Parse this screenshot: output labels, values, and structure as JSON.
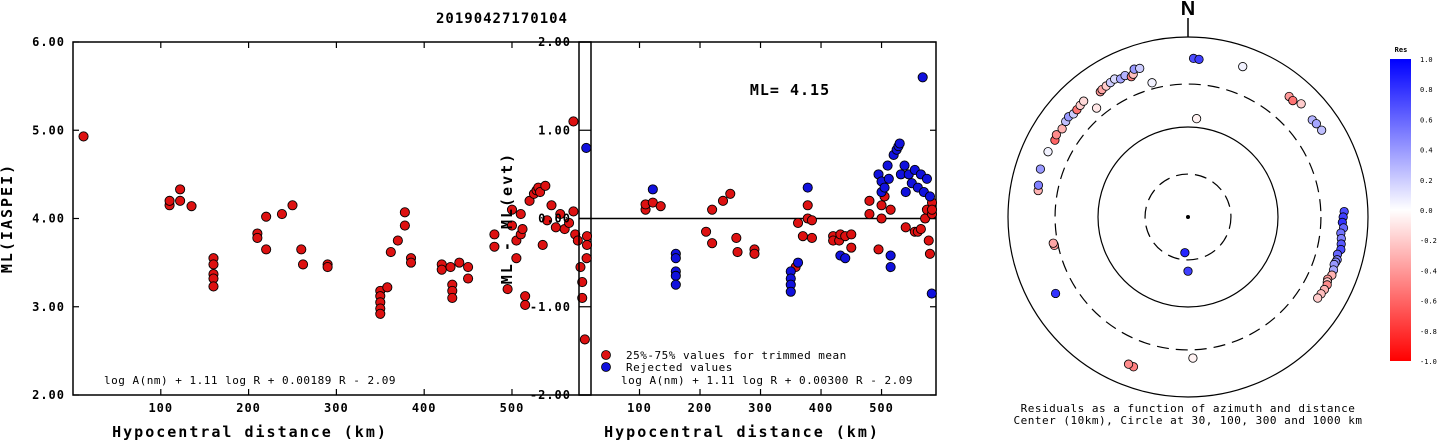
{
  "title": "20190427170104",
  "colors": {
    "red": "#dd1111",
    "blue": "#1111dd",
    "axis": "#000000"
  },
  "chart_data": [
    {
      "type": "scatter",
      "xlabel": "Hypocentral distance (km)",
      "ylabel": "ML(IASPEI)",
      "formula": "log A(nm) + 1.11 log R + 0.00189 R - 2.09",
      "xlim": [
        0,
        590
      ],
      "ylim": [
        2.0,
        6.0
      ],
      "xticks": [
        100,
        200,
        300,
        400,
        500
      ],
      "xtick_labels": [
        "100",
        "200",
        "300",
        "400",
        "500"
      ],
      "yticks": [
        2.0,
        3.0,
        4.0,
        5.0,
        6.0
      ],
      "ytick_labels": [
        "2.00",
        "3.00",
        "4.00",
        "5.00",
        "6.00"
      ],
      "grid": false,
      "points": [
        [
          12,
          4.93
        ],
        [
          110,
          4.15
        ],
        [
          110,
          4.2
        ],
        [
          122,
          4.2
        ],
        [
          122,
          4.33
        ],
        [
          135,
          4.14
        ],
        [
          160,
          3.55
        ],
        [
          160,
          3.48
        ],
        [
          160,
          3.37
        ],
        [
          160,
          3.32
        ],
        [
          160,
          3.23
        ],
        [
          210,
          3.83
        ],
        [
          210,
          3.78
        ],
        [
          220,
          4.02
        ],
        [
          220,
          3.65
        ],
        [
          238,
          4.05
        ],
        [
          250,
          4.15
        ],
        [
          260,
          3.65
        ],
        [
          262,
          3.48
        ],
        [
          290,
          3.48
        ],
        [
          290,
          3.45
        ],
        [
          350,
          3.18
        ],
        [
          350,
          3.12
        ],
        [
          350,
          3.05
        ],
        [
          350,
          2.98
        ],
        [
          350,
          2.92
        ],
        [
          358,
          3.22
        ],
        [
          362,
          3.62
        ],
        [
          370,
          3.75
        ],
        [
          378,
          4.07
        ],
        [
          378,
          3.92
        ],
        [
          385,
          3.55
        ],
        [
          385,
          3.5
        ],
        [
          420,
          3.48
        ],
        [
          420,
          3.42
        ],
        [
          430,
          3.45
        ],
        [
          432,
          3.25
        ],
        [
          432,
          3.18
        ],
        [
          432,
          3.1
        ],
        [
          440,
          3.5
        ],
        [
          450,
          3.45
        ],
        [
          450,
          3.32
        ],
        [
          480,
          3.82
        ],
        [
          480,
          3.68
        ],
        [
          495,
          3.2
        ],
        [
          500,
          4.1
        ],
        [
          500,
          3.92
        ],
        [
          505,
          3.55
        ],
        [
          505,
          3.75
        ],
        [
          510,
          3.82
        ],
        [
          510,
          4.05
        ],
        [
          512,
          3.88
        ],
        [
          515,
          3.12
        ],
        [
          515,
          3.02
        ],
        [
          520,
          4.2
        ],
        [
          525,
          4.28
        ],
        [
          528,
          4.32
        ],
        [
          530,
          4.35
        ],
        [
          532,
          4.3
        ],
        [
          535,
          3.7
        ],
        [
          538,
          4.37
        ],
        [
          540,
          3.98
        ],
        [
          545,
          4.15
        ],
        [
          550,
          3.9
        ],
        [
          555,
          4.05
        ],
        [
          560,
          3.88
        ],
        [
          565,
          3.95
        ],
        [
          570,
          4.08
        ],
        [
          570,
          5.1
        ],
        [
          572,
          3.82
        ],
        [
          575,
          3.75
        ],
        [
          578,
          3.45
        ],
        [
          580,
          3.28
        ],
        [
          580,
          3.1
        ],
        [
          583,
          2.63
        ],
        [
          585,
          3.55
        ],
        [
          588,
          3.8
        ],
        [
          590,
          3.7
        ]
      ]
    },
    {
      "type": "scatter",
      "xlabel": "Hypocentral distance (km)",
      "ylabel": "ML - ML(evt)",
      "annotation": "ML= 4.15",
      "formula": "log A(nm) + 1.11 log R + 0.00300 R - 2.09",
      "xlim": [
        0,
        590
      ],
      "ylim": [
        -2.0,
        2.0
      ],
      "xticks": [
        100,
        200,
        300,
        400,
        500
      ],
      "xtick_labels": [
        "100",
        "200",
        "300",
        "400",
        "500"
      ],
      "yticks": [
        -2.0,
        -1.0,
        0.0,
        1.0,
        2.0
      ],
      "ytick_labels": [
        "-2.00",
        "-1.00",
        "0.00",
        "1.00",
        "2.00"
      ],
      "reference_line": 0.0,
      "grid": false,
      "legend": [
        "25%-75% values for trimmed mean",
        "Rejected values"
      ],
      "series": [
        {
          "name": "25%-75% values for trimmed mean",
          "color": "#dd1111",
          "points": [
            [
              110,
              0.1
            ],
            [
              110,
              0.16
            ],
            [
              122,
              0.18
            ],
            [
              135,
              0.14
            ],
            [
              210,
              -0.15
            ],
            [
              220,
              0.1
            ],
            [
              220,
              -0.28
            ],
            [
              238,
              0.2
            ],
            [
              250,
              0.28
            ],
            [
              260,
              -0.22
            ],
            [
              262,
              -0.38
            ],
            [
              290,
              -0.35
            ],
            [
              290,
              -0.4
            ],
            [
              358,
              -0.55
            ],
            [
              362,
              -0.05
            ],
            [
              370,
              -0.2
            ],
            [
              378,
              0.15
            ],
            [
              378,
              0.0
            ],
            [
              385,
              -0.02
            ],
            [
              385,
              -0.22
            ],
            [
              420,
              -0.2
            ],
            [
              420,
              -0.25
            ],
            [
              430,
              -0.25
            ],
            [
              432,
              -0.18
            ],
            [
              440,
              -0.2
            ],
            [
              450,
              -0.33
            ],
            [
              450,
              -0.18
            ],
            [
              480,
              0.2
            ],
            [
              480,
              0.05
            ],
            [
              495,
              -0.35
            ],
            [
              500,
              0.0
            ],
            [
              500,
              0.15
            ],
            [
              505,
              0.25
            ],
            [
              515,
              0.1
            ],
            [
              540,
              -0.1
            ],
            [
              555,
              -0.15
            ],
            [
              560,
              -0.15
            ],
            [
              565,
              -0.12
            ],
            [
              572,
              0.0
            ],
            [
              575,
              0.1
            ],
            [
              578,
              -0.25
            ],
            [
              580,
              -0.4
            ],
            [
              585,
              0.05
            ],
            [
              588,
              0.18
            ],
            [
              590,
              0.1
            ]
          ]
        },
        {
          "name": "Rejected values",
          "color": "#1111dd",
          "points": [
            [
              12,
              0.8
            ],
            [
              122,
              0.33
            ],
            [
              160,
              -0.4
            ],
            [
              160,
              -0.45
            ],
            [
              160,
              -0.6
            ],
            [
              160,
              -0.65
            ],
            [
              160,
              -0.75
            ],
            [
              350,
              -0.6
            ],
            [
              350,
              -0.68
            ],
            [
              350,
              -0.75
            ],
            [
              350,
              -0.83
            ],
            [
              362,
              -0.5
            ],
            [
              378,
              0.35
            ],
            [
              432,
              -0.42
            ],
            [
              440,
              -0.45
            ],
            [
              495,
              0.5
            ],
            [
              500,
              0.42
            ],
            [
              500,
              0.3
            ],
            [
              505,
              0.35
            ],
            [
              510,
              0.6
            ],
            [
              512,
              0.45
            ],
            [
              515,
              -0.42
            ],
            [
              515,
              -0.55
            ],
            [
              520,
              0.72
            ],
            [
              525,
              0.78
            ],
            [
              528,
              0.82
            ],
            [
              530,
              0.85
            ],
            [
              532,
              0.5
            ],
            [
              538,
              0.6
            ],
            [
              540,
              0.3
            ],
            [
              545,
              0.5
            ],
            [
              550,
              0.4
            ],
            [
              555,
              0.55
            ],
            [
              560,
              0.35
            ],
            [
              565,
              0.5
            ],
            [
              568,
              1.6
            ],
            [
              570,
              0.3
            ],
            [
              575,
              0.45
            ],
            [
              580,
              0.25
            ],
            [
              583,
              -0.85
            ]
          ]
        }
      ]
    },
    {
      "type": "polar_scatter",
      "north_label": "N",
      "caption_lines": [
        "Residuals as a function of azimuth and distance",
        "Center (10km), Circle at 30, 100, 300 and 1000 km"
      ],
      "rings_km": [
        30,
        100,
        300,
        1000
      ],
      "ring_styles": [
        "dashed",
        "solid",
        "dashed",
        "solid"
      ],
      "colorbar": {
        "title": "Res",
        "ticks": [
          1.0,
          0.8,
          0.6,
          0.4,
          0.2,
          0.0,
          -0.2,
          -0.4,
          -0.6,
          -0.8,
          -1.0
        ],
        "labels": [
          "1.0",
          "0.8",
          "0.6",
          "0.4",
          "0.2",
          "0.0",
          "-0.2",
          "-0.4",
          "-0.6",
          "-0.8",
          "-1.0"
        ],
        "max_color": "#0000ff",
        "zero_color": "#ffffff",
        "min_color": "#ff0000"
      },
      "points": [
        [
          185,
          25,
          0.85
        ],
        [
          180,
          40,
          0.75
        ],
        [
          5,
          125,
          -0.05
        ],
        [
          2,
          580,
          0.7
        ],
        [
          4,
          570,
          0.75
        ],
        [
          20,
          600,
          0.05
        ],
        [
          40,
          560,
          -0.4
        ],
        [
          42,
          550,
          -0.55
        ],
        [
          45,
          600,
          -0.2
        ],
        [
          52,
          565,
          0.3
        ],
        [
          54,
          580,
          0.35
        ],
        [
          57,
          590,
          0.25
        ],
        [
          88,
          545,
          0.7
        ],
        [
          90,
          530,
          0.75
        ],
        [
          92,
          520,
          0.8
        ],
        [
          94,
          540,
          0.6
        ],
        [
          96,
          510,
          0.55
        ],
        [
          98,
          525,
          0.5
        ],
        [
          100,
          535,
          0.65
        ],
        [
          102,
          545,
          0.7
        ],
        [
          104,
          515,
          0.6
        ],
        [
          106,
          530,
          0.5
        ],
        [
          107,
          520,
          0.45
        ],
        [
          108,
          510,
          0.4
        ],
        [
          110,
          525,
          0.35
        ],
        [
          112,
          530,
          -0.3
        ],
        [
          114,
          500,
          -0.4
        ],
        [
          115,
          510,
          -0.2
        ],
        [
          116,
          525,
          -0.45
        ],
        [
          118,
          520,
          -0.3
        ],
        [
          120,
          510,
          -0.25
        ],
        [
          122,
          500,
          -0.2
        ],
        [
          178,
          370,
          -0.05
        ],
        [
          200,
          590,
          -0.5
        ],
        [
          202,
          580,
          -0.45
        ],
        [
          240,
          500,
          0.8
        ],
        [
          258,
          330,
          -0.4
        ],
        [
          259,
          335,
          -0.35
        ],
        [
          280,
          490,
          -0.3
        ],
        [
          282,
          500,
          0.5
        ],
        [
          288,
          530,
          0.4
        ],
        [
          295,
          520,
          0.05
        ],
        [
          300,
          510,
          -0.6
        ],
        [
          302,
          530,
          -0.45
        ],
        [
          305,
          510,
          -0.3
        ],
        [
          308,
          530,
          0.25
        ],
        [
          310,
          540,
          0.4
        ],
        [
          312,
          515,
          0.2
        ],
        [
          314,
          520,
          -0.55
        ],
        [
          316,
          530,
          -0.2
        ],
        [
          318,
          540,
          -0.15
        ],
        [
          320,
          380,
          -0.1
        ],
        [
          325,
          500,
          -0.4
        ],
        [
          326,
          510,
          -0.35
        ],
        [
          328,
          520,
          -0.2
        ],
        [
          330,
          530,
          0.2
        ],
        [
          332,
          545,
          0.15
        ],
        [
          334,
          510,
          0.35
        ],
        [
          336,
          525,
          0.3
        ],
        [
          338,
          480,
          -0.5
        ],
        [
          339,
          500,
          -0.25
        ],
        [
          340,
          560,
          0.4
        ],
        [
          342,
          545,
          0.2
        ],
        [
          345,
          350,
          0.05
        ]
      ]
    }
  ]
}
